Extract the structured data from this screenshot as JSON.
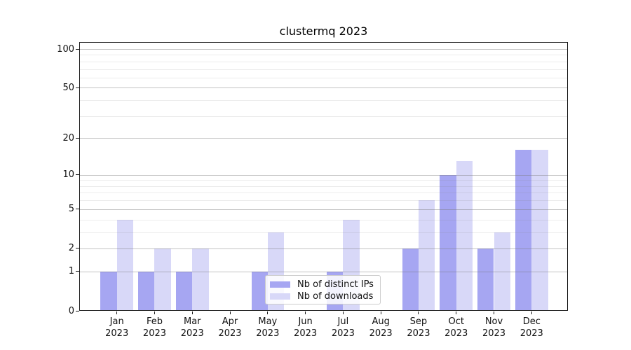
{
  "chart_data": {
    "type": "bar",
    "title": "clustermq 2023",
    "categories": [
      "Jan",
      "Feb",
      "Mar",
      "Apr",
      "May",
      "Jun",
      "Jul",
      "Aug",
      "Sep",
      "Oct",
      "Nov",
      "Dec"
    ],
    "year_label": "2023",
    "series": [
      {
        "name": "Nb of distinct IPs",
        "color": "#a6a6f2",
        "values": [
          1,
          1,
          1,
          0,
          1,
          0,
          1,
          0,
          2,
          10,
          2,
          16
        ]
      },
      {
        "name": "Nb of downloads",
        "color": "#d8d8f8",
        "values": [
          4,
          2,
          2,
          0,
          3,
          0,
          4,
          0,
          6,
          13,
          3,
          16
        ]
      }
    ],
    "yscale": "symlog-log1p",
    "ylim": [
      0,
      113.3
    ],
    "y_major_ticks": [
      0,
      1,
      2,
      5,
      10,
      20,
      50,
      100
    ],
    "y_minor_gridlines": [
      3,
      4,
      6,
      7,
      8,
      9,
      30,
      40,
      60,
      70,
      80,
      90
    ],
    "grid": "both",
    "legend_position": "lower center-right"
  },
  "colors": {
    "background": "#ffffff",
    "major_grid": "rgba(120,120,120,0.45)",
    "minor_grid": "rgba(120,120,120,0.14)",
    "spine": "#1a1a1a",
    "text": "#111111",
    "legend_border": "#cccccc"
  }
}
